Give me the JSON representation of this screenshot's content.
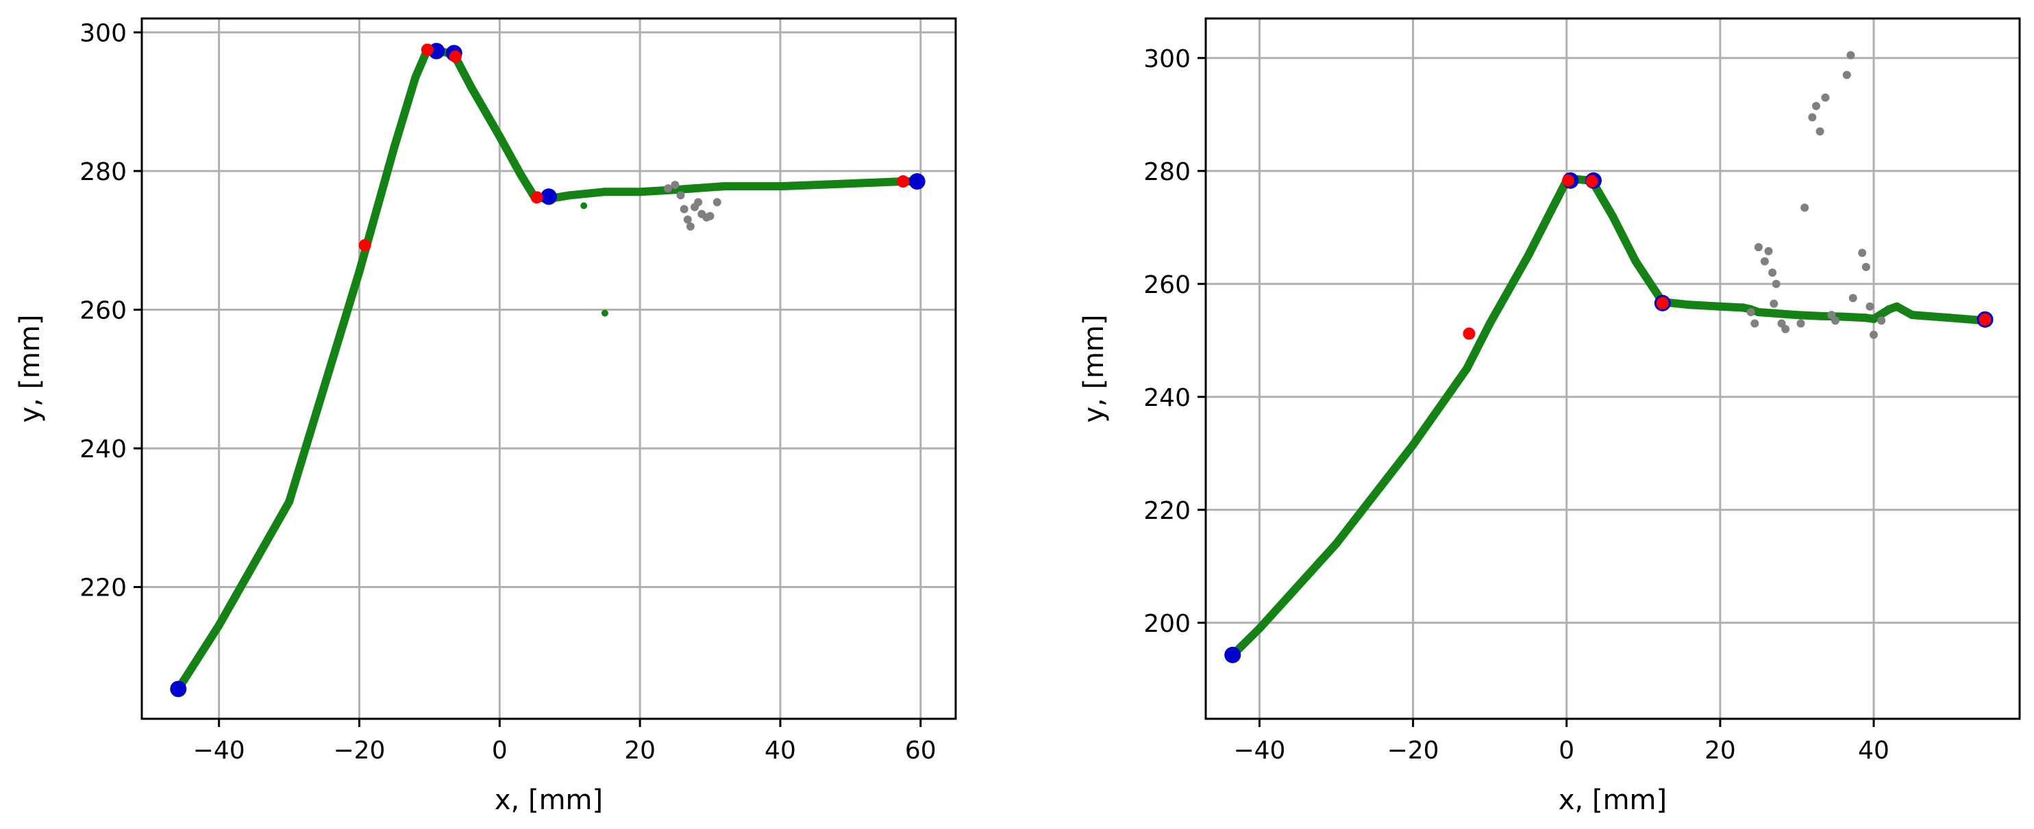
{
  "chart_data": [
    {
      "type": "scatter",
      "xlabel": "x, [mm]",
      "ylabel": "y, [mm]",
      "xlim": [
        -51,
        65
      ],
      "ylim": [
        201,
        302
      ],
      "xticks": [
        -40,
        -20,
        0,
        20,
        40,
        60
      ],
      "yticks": [
        220,
        240,
        260,
        280,
        300
      ],
      "grid": true,
      "colors": {
        "trace": "#148214",
        "outlier": "#808080",
        "endpoint": "#0000cc",
        "marker": "#ff0000"
      },
      "series": [
        {
          "role": "trace",
          "values": [
            [
              -45.8,
              205.3
            ],
            [
              -40,
              214.5
            ],
            [
              -30,
              232.3
            ],
            [
              -20,
              265.5
            ],
            [
              -15,
              283.5
            ],
            [
              -12,
              293.5
            ],
            [
              -10.3,
              297.5
            ],
            [
              -8.5,
              297.3
            ],
            [
              -6.5,
              296.8
            ],
            [
              -4,
              292
            ],
            [
              0,
              285
            ],
            [
              3,
              279.5
            ],
            [
              5,
              276.2
            ],
            [
              7,
              276
            ],
            [
              10,
              276.5
            ],
            [
              15,
              277
            ],
            [
              20,
              277
            ],
            [
              25,
              277.3
            ],
            [
              32,
              277.8
            ],
            [
              40,
              277.8
            ],
            [
              50,
              278.2
            ],
            [
              57.5,
              278.5
            ],
            [
              60,
              278.5
            ]
          ],
          "extra_points": [
            [
              12,
              275
            ],
            [
              15,
              259.5
            ]
          ]
        },
        {
          "role": "outlier",
          "values": [
            [
              24,
              277.5
            ],
            [
              25,
              278
            ],
            [
              25.8,
              276.5
            ],
            [
              26.3,
              274.5
            ],
            [
              26.8,
              273
            ],
            [
              27.2,
              272
            ],
            [
              27.8,
              274.8
            ],
            [
              28.3,
              275.5
            ],
            [
              28.8,
              273.8
            ],
            [
              29.5,
              273.3
            ],
            [
              30,
              273.5
            ],
            [
              31,
              275.5
            ]
          ]
        },
        {
          "role": "endpoint",
          "values": [
            [
              -45.8,
              205.3
            ],
            [
              -9,
              297.3
            ],
            [
              -6.5,
              297
            ],
            [
              7,
              276.3
            ],
            [
              59.5,
              278.5
            ]
          ]
        },
        {
          "role": "marker",
          "values": [
            [
              -19.2,
              269.3
            ],
            [
              -10.3,
              297.5
            ],
            [
              -6.3,
              296.5
            ],
            [
              5.3,
              276.2
            ],
            [
              57.5,
              278.5
            ]
          ]
        }
      ]
    },
    {
      "type": "scatter",
      "xlabel": "x, [mm]",
      "ylabel": "y, [mm]",
      "xlim": [
        -47,
        59
      ],
      "ylim": [
        183,
        307
      ],
      "xticks": [
        -40,
        -20,
        0,
        20,
        40
      ],
      "yticks": [
        200,
        220,
        240,
        260,
        280,
        300
      ],
      "grid": true,
      "colors": {
        "trace": "#148214",
        "outlier": "#808080",
        "endpoint": "#0000cc",
        "marker": "#ff0000"
      },
      "series": [
        {
          "role": "trace",
          "values": [
            [
              -43.5,
              194.3
            ],
            [
              -40,
              199
            ],
            [
              -30,
              214
            ],
            [
              -20,
              231.5
            ],
            [
              -13,
              245
            ],
            [
              -10,
              253
            ],
            [
              -5,
              265
            ],
            [
              -2,
              273
            ],
            [
              0,
              278.3
            ],
            [
              1.5,
              278.5
            ],
            [
              3.3,
              278.3
            ],
            [
              6,
              272
            ],
            [
              9,
              264
            ],
            [
              12.5,
              256.8
            ],
            [
              16,
              256.3
            ],
            [
              20,
              256
            ],
            [
              23,
              255.8
            ],
            [
              24,
              255.5
            ],
            [
              25,
              255
            ],
            [
              27,
              254.8
            ],
            [
              30,
              254.5
            ],
            [
              33,
              254.3
            ],
            [
              36,
              254.2
            ],
            [
              39,
              254
            ],
            [
              40,
              253.8
            ],
            [
              42,
              255.5
            ],
            [
              43,
              256
            ],
            [
              45,
              254.5
            ],
            [
              50,
              254
            ],
            [
              54.5,
              253.5
            ]
          ]
        },
        {
          "role": "outlier",
          "values": [
            [
              24,
              255
            ],
            [
              25,
              266.5
            ],
            [
              25.8,
              264
            ],
            [
              26.3,
              265.8
            ],
            [
              26.8,
              262
            ],
            [
              27.3,
              260
            ],
            [
              24.5,
              253
            ],
            [
              27,
              256.5
            ],
            [
              28,
              253
            ],
            [
              28.5,
              252
            ],
            [
              30.5,
              253
            ],
            [
              31,
              273.5
            ],
            [
              32,
              289.5
            ],
            [
              32.5,
              291.5
            ],
            [
              33,
              287
            ],
            [
              33.7,
              293
            ],
            [
              34.5,
              254.5
            ],
            [
              35,
              253.5
            ],
            [
              36.5,
              297
            ],
            [
              37,
              300.5
            ],
            [
              37.3,
              257.5
            ],
            [
              38.5,
              265.5
            ],
            [
              39,
              263
            ],
            [
              39.5,
              256
            ],
            [
              40,
              251
            ],
            [
              41,
              253.5
            ]
          ]
        },
        {
          "role": "endpoint",
          "values": [
            [
              -43.5,
              194.3
            ],
            [
              0.5,
              278.3
            ],
            [
              3.5,
              278.3
            ],
            [
              12.5,
              256.6
            ],
            [
              54.5,
              253.7
            ]
          ]
        },
        {
          "role": "marker",
          "values": [
            [
              -12.7,
              251.2
            ],
            [
              0.2,
              278.3
            ],
            [
              3.3,
              278.2
            ],
            [
              12.5,
              256.6
            ],
            [
              54.5,
              253.7
            ]
          ]
        }
      ]
    }
  ]
}
